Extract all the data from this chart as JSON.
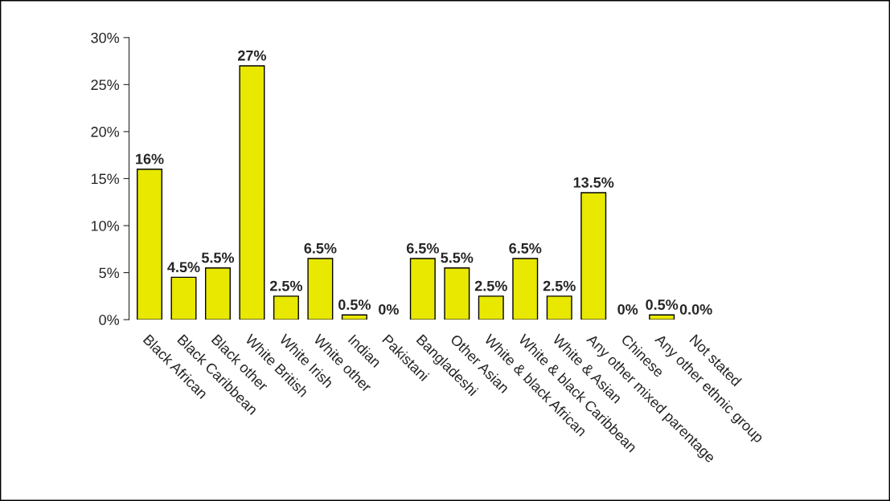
{
  "chart_data": {
    "type": "bar",
    "categories": [
      "Black African",
      "Black Caribbean",
      "Black other",
      "White British",
      "White Irish",
      "White other",
      "Indian",
      "Pakistani",
      "Bangladeshi",
      "Other Asian",
      "White & black African",
      "White & black Caribbean",
      "White & Asian",
      "Any other mixed parentage",
      "Chinese",
      "Any other ethnic group",
      "Not stated"
    ],
    "values": [
      16,
      4.5,
      5.5,
      27,
      2.5,
      6.5,
      0.5,
      0,
      6.5,
      5.5,
      2.5,
      6.5,
      2.5,
      13.5,
      0,
      0.5,
      0.0
    ],
    "value_labels": [
      "16%",
      "4.5%",
      "5.5%",
      "27%",
      "2.5%",
      "6.5%",
      "0.5%",
      "0%",
      "6.5%",
      "5.5%",
      "2.5%",
      "6.5%",
      "2.5%",
      "13.5%",
      "0%",
      "0.5%",
      "0.0%"
    ],
    "color": "#e8e800",
    "ylim": [
      0,
      30
    ],
    "yticks": [
      {
        "value": 0,
        "label": "0%"
      },
      {
        "value": 5,
        "label": "5%"
      },
      {
        "value": 10,
        "label": "10%"
      },
      {
        "value": 15,
        "label": "15%"
      },
      {
        "value": 20,
        "label": "20%"
      },
      {
        "value": 25,
        "label": "25%"
      },
      {
        "value": 30,
        "label": "30%"
      }
    ],
    "grid": false
  }
}
